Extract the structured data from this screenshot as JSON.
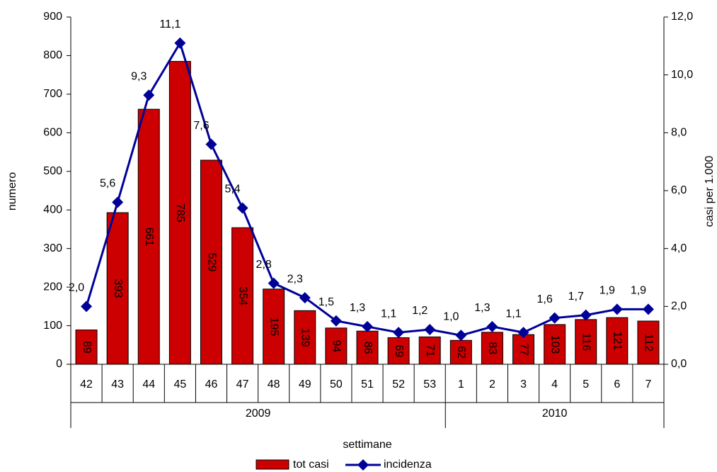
{
  "chart_data": {
    "type": "bar",
    "x_label": "settimane",
    "y_label": "numero",
    "y2_label": "casi per 1.000",
    "groups": [
      {
        "name": "2009",
        "categories": [
          "42",
          "43",
          "44",
          "45",
          "46",
          "47",
          "48",
          "49",
          "50",
          "51",
          "52",
          "53"
        ]
      },
      {
        "name": "2010",
        "categories": [
          "1",
          "2",
          "3",
          "4",
          "5",
          "6",
          "7"
        ]
      }
    ],
    "series": [
      {
        "name": "tot casi",
        "type": "bar",
        "color": "#cc0000",
        "values": [
          89,
          393,
          661,
          785,
          529,
          354,
          195,
          139,
          94,
          86,
          69,
          71,
          62,
          83,
          77,
          103,
          116,
          121,
          112
        ]
      },
      {
        "name": "incidenza",
        "type": "line",
        "axis": "y2",
        "color": "#000099",
        "values": [
          2.0,
          5.6,
          9.3,
          11.1,
          7.6,
          5.4,
          2.8,
          2.3,
          1.5,
          1.3,
          1.1,
          1.2,
          1.0,
          1.3,
          1.1,
          1.6,
          1.7,
          1.9,
          1.9
        ],
        "value_labels": [
          "2,0",
          "5,6",
          "9,3",
          "11,1",
          "7,6",
          "5,4",
          "2,8",
          "2,3",
          "1,5",
          "1,3",
          "1,1",
          "1,2",
          "1,0",
          "1,3",
          "1,1",
          "1,6",
          "1,7",
          "1,9",
          "1,9"
        ]
      }
    ],
    "ylim": [
      0,
      900
    ],
    "yticks": [
      0,
      100,
      200,
      300,
      400,
      500,
      600,
      700,
      800,
      900
    ],
    "y2lim": [
      0,
      12
    ],
    "y2ticks": [
      {
        "value": 0,
        "label": "0,0"
      },
      {
        "value": 2,
        "label": "2,0"
      },
      {
        "value": 4,
        "label": "4,0"
      },
      {
        "value": 6,
        "label": "6,0"
      },
      {
        "value": 8,
        "label": "8,0"
      },
      {
        "value": 10,
        "label": "10,0"
      },
      {
        "value": 12,
        "label": "12,0"
      }
    ],
    "legend": "bottom"
  }
}
